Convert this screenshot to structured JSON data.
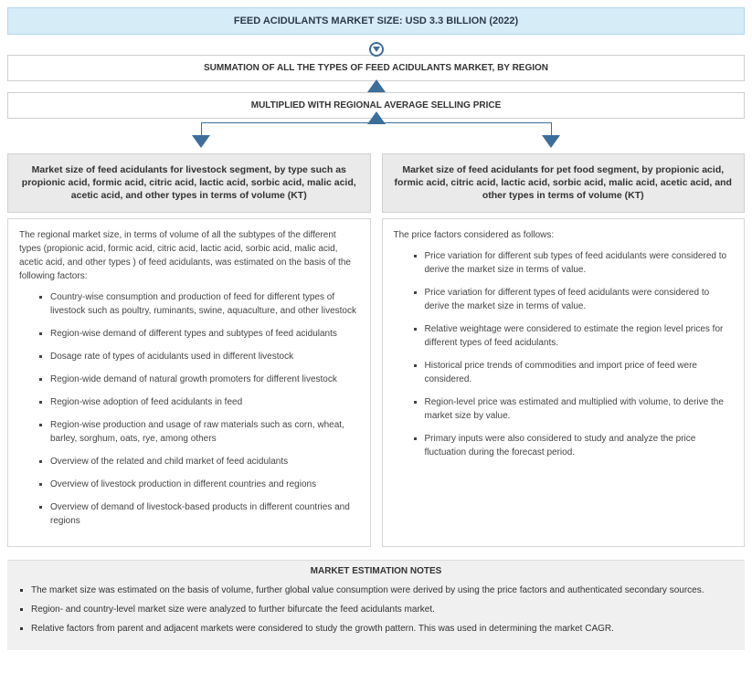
{
  "title": "FEED ACIDULANTS MARKET SIZE: USD 3.3 BILLION (2022)",
  "summation": "SUMMATION OF ALL THE TYPES OF FEED ACIDULANTS MARKET, BY REGION",
  "multiplied": "MULTIPLIED WITH REGIONAL AVERAGE SELLING PRICE",
  "left": {
    "head": "Market size of feed acidulants for livestock segment, by type such as propionic acid, formic acid, citric acid, lactic acid, sorbic acid, malic acid, acetic acid, and other types in terms of volume (KT)",
    "intro": "The regional market size, in terms of volume of all the subtypes of the different types (propionic acid, formic acid, citric acid, lactic acid, sorbic acid, malic acid, acetic acid, and other types ) of feed acidulants, was estimated on the basis of the following factors:",
    "items": [
      "Country-wise consumption and production of feed for different types of livestock such as poultry, ruminants, swine, aquaculture, and other livestock",
      "Region-wise demand of different types and subtypes of feed acidulants",
      "Dosage rate of types of acidulants used in different livestock",
      "Region-wide demand of natural growth promoters for different livestock",
      "Region-wise adoption of feed acidulants in feed",
      "Region-wise production and usage of raw materials such as corn, wheat, barley, sorghum, oats, rye, among others",
      "Overview of the related and child market of feed acidulants",
      "Overview of livestock production in different countries and regions",
      "Overview of demand of livestock-based products in different countries and regions"
    ]
  },
  "right": {
    "head": "Market size of feed acidulants for pet food segment, by propionic acid, formic acid, citric acid, lactic acid, sorbic acid, malic acid, acetic acid, and other types in terms of volume (KT)",
    "intro": "The price factors considered as follows:",
    "items": [
      "Price variation for different sub types of feed acidulants were considered to derive the market size in terms of value.",
      "Price variation for different types of feed acidulants were considered to derive the market size in terms of value.",
      "Relative weightage were considered to estimate the region level prices for different types of feed acidulants.",
      "Historical price trends of commodities and import price of feed were considered.",
      "Region-level price was estimated and multiplied with volume, to derive the market size by value.",
      "Primary inputs were also considered to study and analyze the price fluctuation during the forecast period."
    ]
  },
  "notes": {
    "title": "MARKET ESTIMATION NOTES",
    "items": [
      "The market size was estimated on the basis of volume, further global value consumption were derived by using the price factors and authenticated secondary sources.",
      "Region- and country-level market size were analyzed to further bifurcate the feed acidulants market.",
      "Relative factors from parent and adjacent markets were considered to study the growth pattern. This was used in determining the market CAGR."
    ]
  },
  "colors": {
    "title_bg": "#d6ecf7",
    "title_border": "#b0d7ea",
    "arrow": "#3c6e9c",
    "box_border": "#cfcfcf",
    "seg_bg": "#eaeaea",
    "notes_bg": "#f0f0f0"
  }
}
